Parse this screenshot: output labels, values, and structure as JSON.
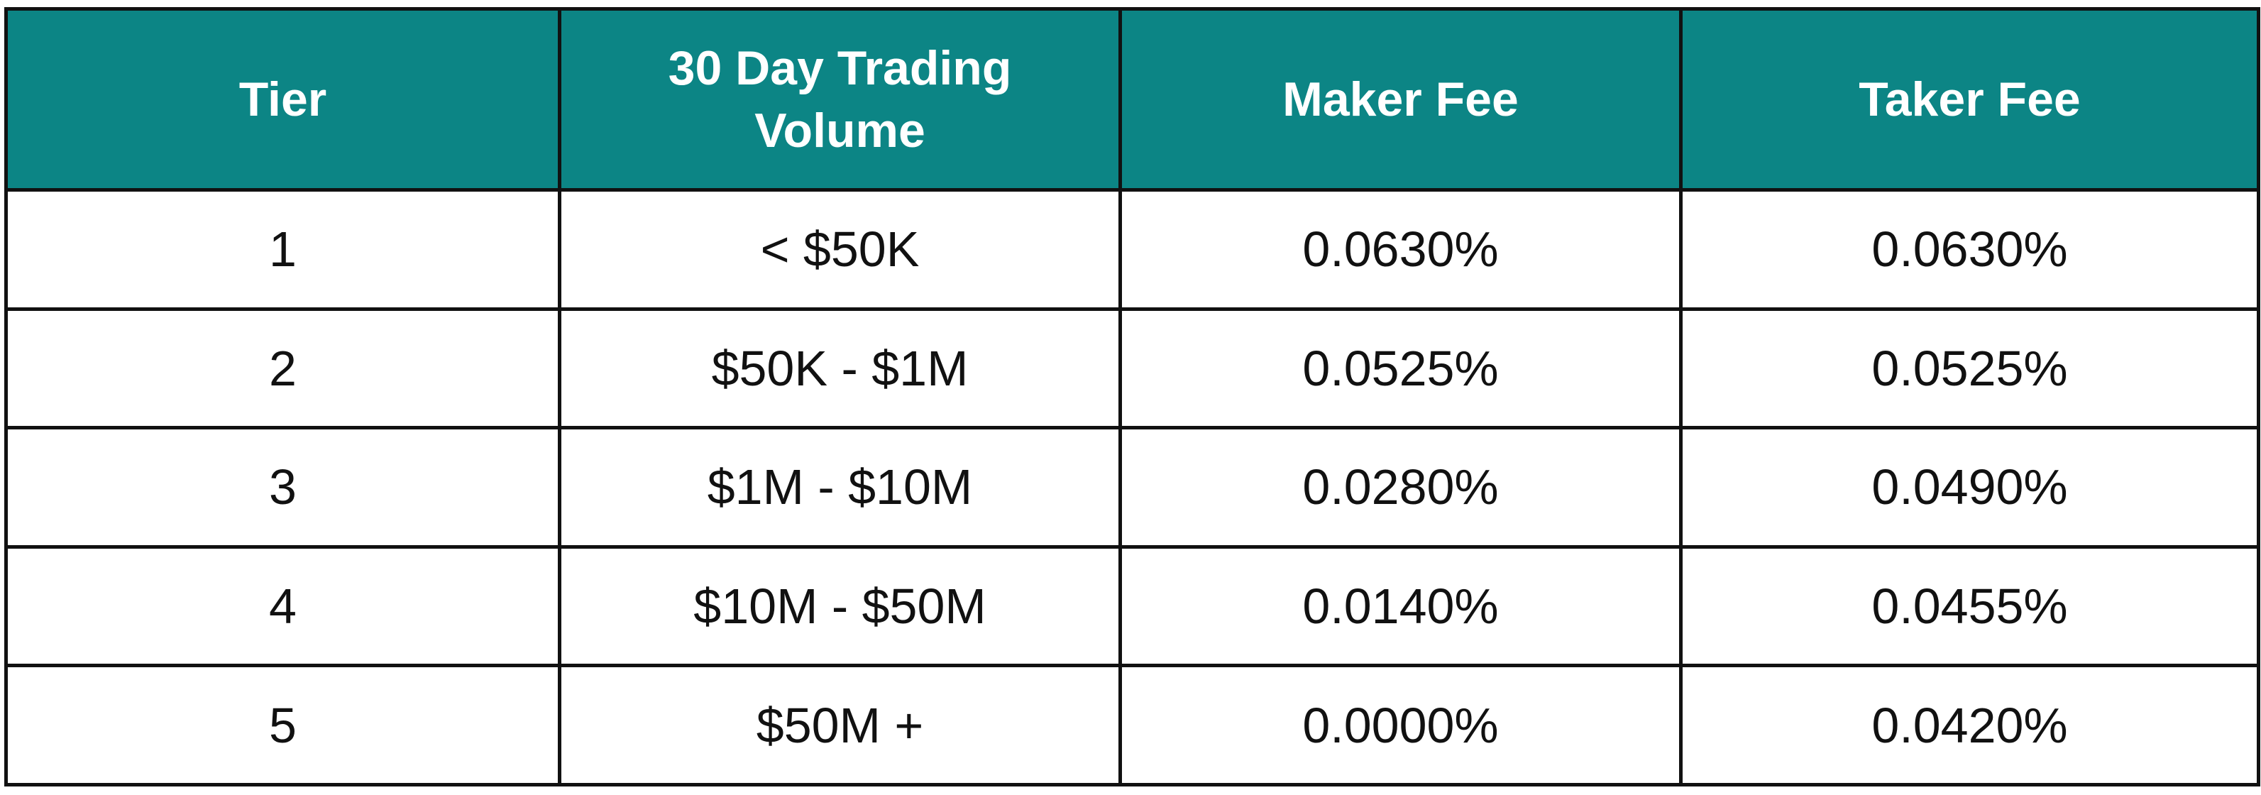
{
  "table": {
    "headers": [
      "Tier",
      "30 Day Trading Volume",
      "Maker Fee",
      "Taker Fee"
    ],
    "header_line_break": {
      "volume_line1": "30 Day Trading",
      "volume_line2": "Volume"
    },
    "rows": [
      [
        "1",
        "< $50K",
        "0.0630%",
        "0.0630%"
      ],
      [
        "2",
        "$50K - $1M",
        "0.0525%",
        "0.0525%"
      ],
      [
        "3",
        "$1M - $10M",
        "0.0280%",
        "0.0490%"
      ],
      [
        "4",
        "$10M - $50M",
        "0.0140%",
        "0.0455%"
      ],
      [
        "5",
        "$50M +",
        "0.0000%",
        "0.0420%"
      ]
    ]
  },
  "colors": {
    "header_background": "#0c8585",
    "header_text": "#ffffff",
    "border": "#111111",
    "cell_text": "#111111"
  }
}
